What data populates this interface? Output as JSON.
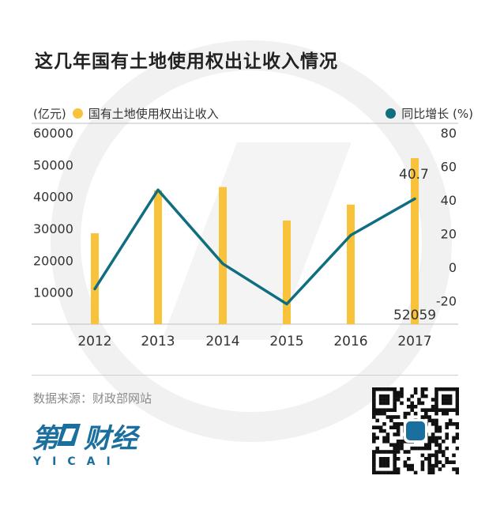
{
  "header": {
    "title": "这几年国有土地使用权出让收入情况"
  },
  "legend": {
    "left_unit": "(亿元)",
    "left_series": "国有土地使用权出让收入",
    "right_series": "同比增长 (%)"
  },
  "colors": {
    "bar": "#F8C23A",
    "line": "#0F6E80",
    "axis": "#333333",
    "grid": "#bfbfbf",
    "watermark": "#f1f1f1"
  },
  "chart_data": {
    "type": "bar+line",
    "categories": [
      "2012",
      "2013",
      "2014",
      "2015",
      "2016",
      "2017"
    ],
    "bars": {
      "name": "国有土地使用权出让收入",
      "values": [
        28500,
        42000,
        43000,
        32500,
        37500,
        52059
      ]
    },
    "line": {
      "name": "同比增长 (%)",
      "values": [
        -13,
        46,
        2,
        -22,
        19,
        40.7
      ]
    },
    "y_left": {
      "ticks": [
        "60000",
        "50000",
        "40000",
        "30000",
        "20000",
        "10000"
      ],
      "range": [
        0,
        60000
      ]
    },
    "y_right": {
      "ticks": [
        "80",
        "60",
        "40",
        "20",
        "0",
        "-20"
      ],
      "range": [
        -34,
        80
      ]
    },
    "annotations": {
      "line_last": "40.7",
      "bar_last": "52059"
    }
  },
  "footer": {
    "source": "数据来源：财政部网站",
    "logo_text": "第一财经",
    "logo_sub": "Y I C A I"
  }
}
